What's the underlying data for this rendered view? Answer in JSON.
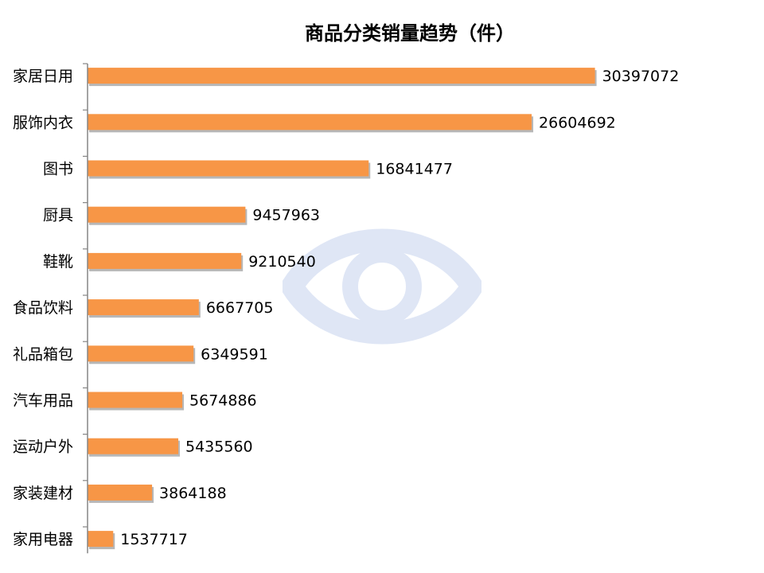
{
  "chart_data": {
    "type": "bar",
    "orientation": "horizontal",
    "title": "商品分类销量趋势（件）",
    "xlabel": "",
    "ylabel": "",
    "categories": [
      "家居日用",
      "服饰内衣",
      "图书",
      "厨具",
      "鞋靴",
      "食品饮料",
      "礼品箱包",
      "汽车用品",
      "运动户外",
      "家装建材",
      "家用电器"
    ],
    "values": [
      30397072,
      26604692,
      16841477,
      9457963,
      9210540,
      6667705,
      6349591,
      5674886,
      5435560,
      3864188,
      1537717
    ],
    "xlim": [
      0,
      41000000
    ],
    "grid": false,
    "legend": "none",
    "bar_color": "#F79646",
    "bar_shadow_color": "#B7B7B7",
    "axis_color": "#868686"
  },
  "watermark": {
    "icon": "eye-logo",
    "color": "#C5D3EE"
  }
}
